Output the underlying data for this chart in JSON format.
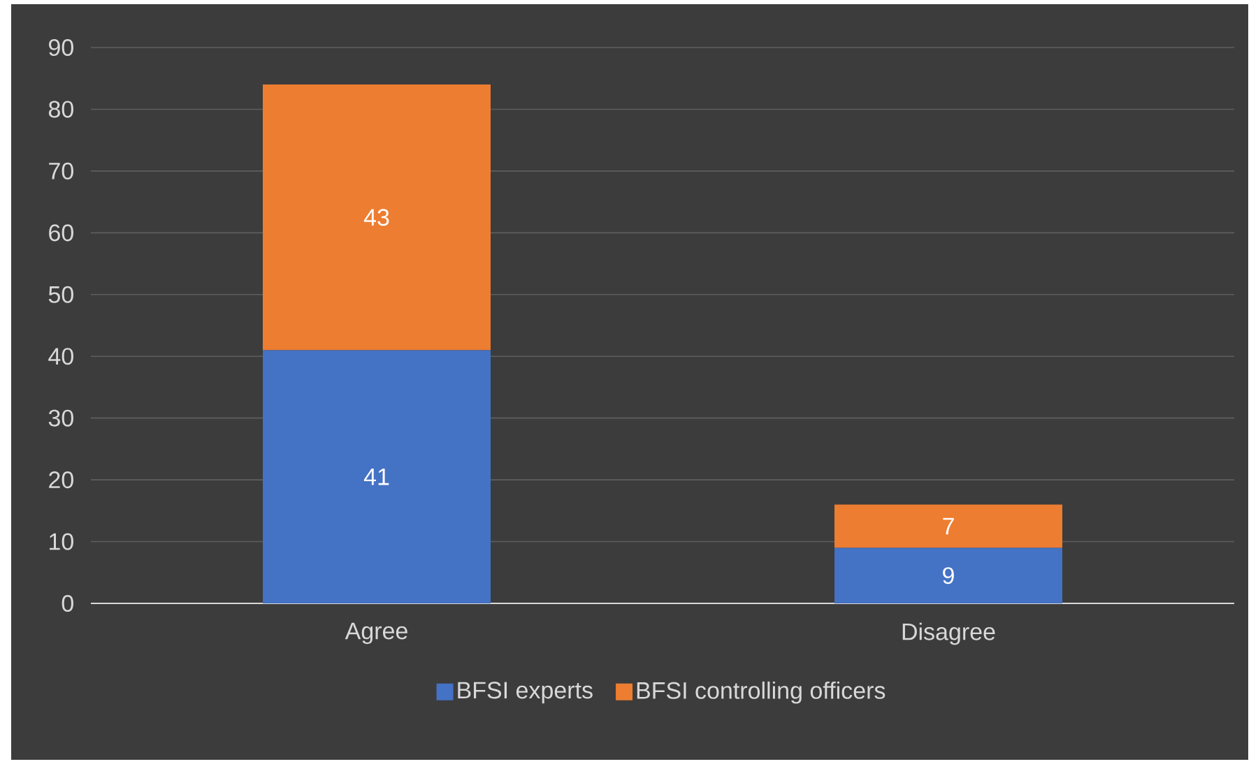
{
  "chart_data": {
    "type": "bar",
    "stacked": true,
    "categories": [
      "Agree",
      "Disagree"
    ],
    "series": [
      {
        "name": "BFSI experts",
        "color": "#4472c4",
        "values": [
          41,
          9
        ]
      },
      {
        "name": "BFSI controlling officers",
        "color": "#ed7d31",
        "values": [
          43,
          7
        ]
      }
    ],
    "ylim": [
      0,
      90
    ],
    "yticks": [
      0,
      10,
      20,
      30,
      40,
      50,
      60,
      70,
      80,
      90
    ],
    "grid": "y",
    "legend": "bottom",
    "data_labels": true
  }
}
